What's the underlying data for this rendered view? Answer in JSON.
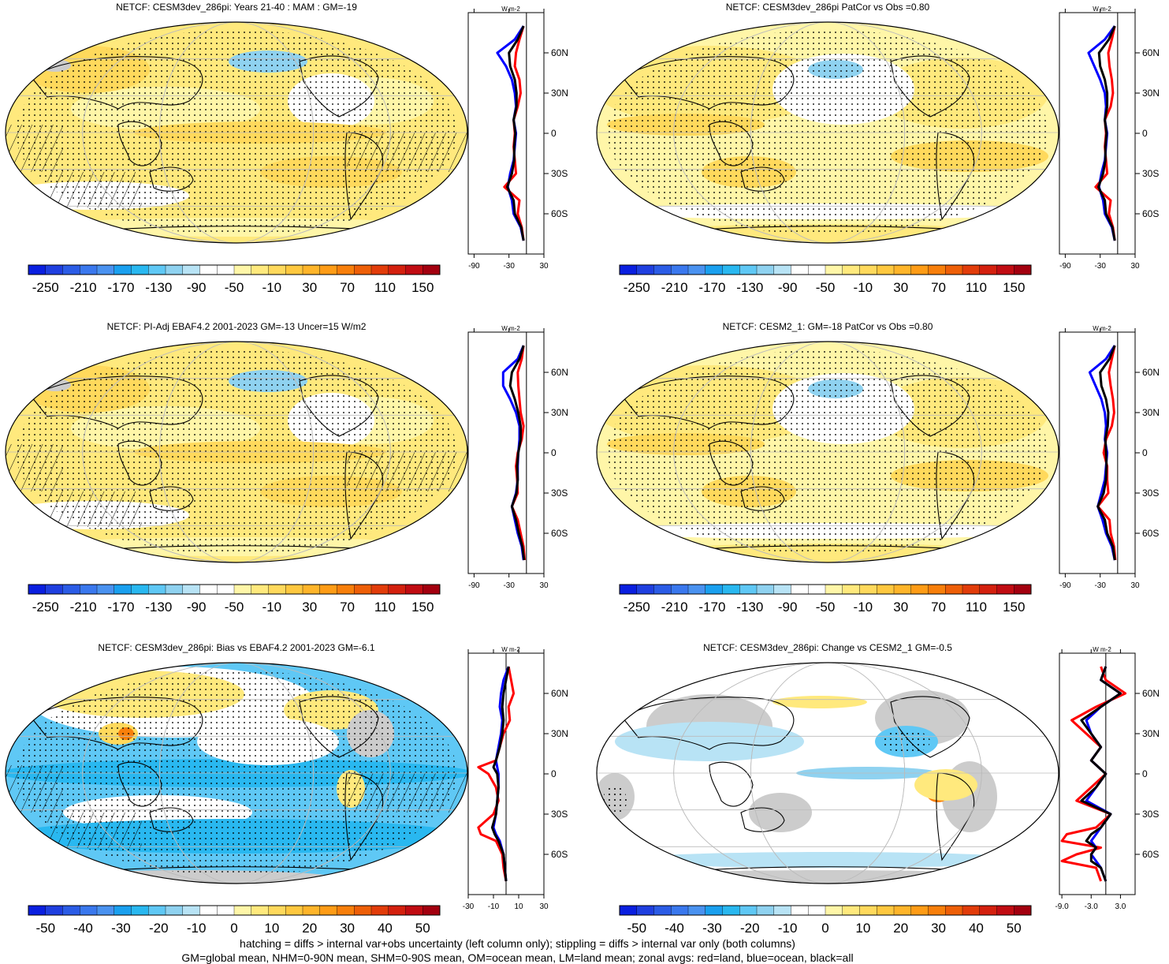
{
  "panels": [
    {
      "title": "NETCF: CESM3dev_286pi: Years 21-40 : MAM : GM=-19"
    },
    {
      "title": "NETCF: CESM3dev_286pi PatCor vs Obs =0.80"
    },
    {
      "title": "NETCF: PI-Adj EBAF4.2 2001-2023 GM=-13 Uncer=15 W/m2"
    },
    {
      "title": "NETCF: CESM2_1: GM=-18 PatCor vs Obs =0.80"
    },
    {
      "title": "NETCF: CESM3dev_286pi: Bias vs EBAF4.2 2001-2023 GM=-6.1"
    },
    {
      "title": "NETCF: CESM3dev_286pi: Change vs CESM2_1 GM=-0.5"
    }
  ],
  "footer": {
    "line1": "hatching = diffs > internal var+obs uncertainty (left column only); stippling = diffs > internal var only (both columns)",
    "line2": "GM=global mean, NHM=0-90N mean, SHM=0-90S mean, OM=ocean mean, LM=land mean; zonal avgs: red=land, blue=ocean, black=all"
  },
  "chart_data": [
    {
      "type": "heatmap",
      "title": "NETCF: CESM3dev_286pi: Years 21-40 : MAM : GM=-19",
      "colorbar_ticks": [
        "-250",
        "-210",
        "-170",
        "-130",
        "-90",
        "-50",
        "-10",
        "30",
        "70",
        "110",
        "150"
      ],
      "colors": [
        "#0a1fe0",
        "#1f3fe0",
        "#2b5ce6",
        "#3a78ee",
        "#4a92f0",
        "#1aa0ef",
        "#29b8f0",
        "#5fc8f5",
        "#8fd2f0",
        "#b8e3f5",
        "#ffffff",
        "#ffffff",
        "#fff6a8",
        "#ffe97d",
        "#ffd95c",
        "#ffc83f",
        "#ffb52a",
        "#ff9c16",
        "#f87f0b",
        "#ee5f08",
        "#e23c0a",
        "#d4200e",
        "#c10c12",
        "#a3000f"
      ],
      "zonal_avg": {
        "unit": "W m-2",
        "xlim": [
          -100,
          30
        ],
        "xticks": [
          "-90",
          "-30",
          "30"
        ],
        "lat_ticks": [
          "60N",
          "30N",
          "0",
          "30S",
          "60S"
        ],
        "series": [
          {
            "color": "#ff0000",
            "lat": [
              80,
              70,
              60,
              50,
              40,
              30,
              20,
              10,
              0,
              -10,
              -20,
              -30,
              -40,
              -50,
              -60,
              -70,
              -80
            ],
            "values": [
              -5,
              -12,
              -18,
              -20,
              -12,
              -10,
              -15,
              -22,
              -20,
              -22,
              -20,
              -18,
              -38,
              -12,
              -15,
              -8,
              -5
            ]
          },
          {
            "color": "#0000ff",
            "lat": [
              80,
              70,
              60,
              50,
              40,
              30,
              20,
              10,
              0,
              -10,
              -20,
              -30,
              -40,
              -50,
              -60,
              -70,
              -80
            ],
            "values": [
              -5,
              -20,
              -50,
              -35,
              -25,
              -20,
              -18,
              -22,
              -18,
              -20,
              -22,
              -28,
              -32,
              -25,
              -22,
              -10,
              -5
            ]
          },
          {
            "color": "#000000",
            "lat": [
              80,
              70,
              60,
              50,
              40,
              30,
              20,
              10,
              0,
              -10,
              -20,
              -30,
              -40,
              -50,
              -60,
              -70,
              -80
            ],
            "values": [
              -5,
              -15,
              -30,
              -28,
              -20,
              -17,
              -17,
              -22,
              -19,
              -21,
              -21,
              -25,
              -33,
              -22,
              -20,
              -9,
              -5
            ]
          }
        ]
      }
    },
    {
      "type": "heatmap",
      "title": "NETCF: CESM3dev_286pi PatCor vs Obs =0.80",
      "colorbar_ticks": [
        "-250",
        "-210",
        "-170",
        "-130",
        "-90",
        "-50",
        "-10",
        "30",
        "70",
        "110",
        "150"
      ],
      "zonal_avg": {
        "unit": "W m-2",
        "xlim": [
          -100,
          30
        ],
        "xticks": [
          "-90",
          "-30",
          "30"
        ],
        "lat_ticks": [
          "60N",
          "30N",
          "0",
          "30S",
          "60S"
        ],
        "series": [
          {
            "color": "#ff0000",
            "lat": [
              80,
              70,
              60,
              50,
              40,
              30,
              20,
              10,
              0,
              -10,
              -20,
              -30,
              -40,
              -50,
              -60,
              -70,
              -80
            ],
            "values": [
              -5,
              -10,
              -16,
              -14,
              -10,
              -8,
              -12,
              -22,
              -20,
              -22,
              -20,
              -18,
              -38,
              -12,
              -15,
              -8,
              -5
            ]
          },
          {
            "color": "#0000ff",
            "lat": [
              80,
              70,
              60,
              50,
              40,
              30,
              20,
              10,
              0,
              -10,
              -20,
              -30,
              -40,
              -50,
              -60,
              -70,
              -80
            ],
            "values": [
              -5,
              -22,
              -50,
              -40,
              -30,
              -22,
              -20,
              -22,
              -18,
              -20,
              -22,
              -28,
              -32,
              -25,
              -22,
              -10,
              -5
            ]
          },
          {
            "color": "#000000",
            "lat": [
              80,
              70,
              60,
              50,
              40,
              30,
              20,
              10,
              0,
              -10,
              -20,
              -30,
              -40,
              -50,
              -60,
              -70,
              -80
            ],
            "values": [
              -5,
              -15,
              -32,
              -30,
              -22,
              -18,
              -18,
              -22,
              -19,
              -21,
              -21,
              -25,
              -33,
              -22,
              -20,
              -9,
              -5
            ]
          }
        ]
      }
    },
    {
      "type": "heatmap",
      "title": "NETCF: PI-Adj EBAF4.2 2001-2023 GM=-13 Uncer=15 W/m2",
      "colorbar_ticks": [
        "-250",
        "-210",
        "-170",
        "-130",
        "-90",
        "-50",
        "-10",
        "30",
        "70",
        "110",
        "150"
      ],
      "zonal_avg": {
        "unit": "W m-2",
        "xlim": [
          -100,
          30
        ],
        "xticks": [
          "-90",
          "-30",
          "30"
        ],
        "lat_ticks": [
          "60N",
          "30N",
          "0",
          "30S",
          "60S"
        ],
        "series": [
          {
            "color": "#ff0000",
            "lat": [
              80,
              70,
              60,
              50,
              40,
              30,
              20,
              10,
              0,
              -10,
              -20,
              -30,
              -40,
              -50,
              -60,
              -70,
              -80
            ],
            "values": [
              -5,
              -8,
              -15,
              -14,
              -12,
              -10,
              -5,
              -8,
              -15,
              -18,
              -16,
              -15,
              -25,
              -15,
              -10,
              -5,
              -3
            ]
          },
          {
            "color": "#0000ff",
            "lat": [
              80,
              70,
              60,
              50,
              40,
              30,
              20,
              10,
              0,
              -10,
              -20,
              -30,
              -40,
              -50,
              -60,
              -70,
              -80
            ],
            "values": [
              -5,
              -15,
              -40,
              -40,
              -28,
              -18,
              -12,
              -12,
              -14,
              -15,
              -15,
              -18,
              -25,
              -20,
              -15,
              -8,
              -5
            ]
          },
          {
            "color": "#000000",
            "lat": [
              80,
              70,
              60,
              50,
              40,
              30,
              20,
              10,
              0,
              -10,
              -20,
              -30,
              -40,
              -50,
              -60,
              -70,
              -80
            ],
            "values": [
              -5,
              -12,
              -25,
              -28,
              -20,
              -14,
              -10,
              -10,
              -14,
              -16,
              -15,
              -17,
              -25,
              -18,
              -13,
              -7,
              -4
            ]
          }
        ]
      }
    },
    {
      "type": "heatmap",
      "title": "NETCF: CESM2_1: GM=-18 PatCor vs Obs =0.80",
      "colorbar_ticks": [
        "-250",
        "-210",
        "-170",
        "-130",
        "-90",
        "-50",
        "-10",
        "30",
        "70",
        "110",
        "150"
      ],
      "zonal_avg": {
        "unit": "W m-2",
        "xlim": [
          -100,
          30
        ],
        "xticks": [
          "-90",
          "-30",
          "30"
        ],
        "lat_ticks": [
          "60N",
          "30N",
          "0",
          "30S",
          "60S"
        ],
        "series": [
          {
            "color": "#ff0000",
            "lat": [
              80,
              70,
              60,
              50,
              40,
              30,
              20,
              10,
              0,
              -10,
              -20,
              -30,
              -40,
              -50,
              -60,
              -70,
              -80
            ],
            "values": [
              -5,
              -10,
              -15,
              -12,
              -8,
              -6,
              -10,
              -20,
              -24,
              -18,
              -18,
              -16,
              -34,
              -14,
              -12,
              -6,
              -4
            ]
          },
          {
            "color": "#0000ff",
            "lat": [
              80,
              70,
              60,
              50,
              40,
              30,
              20,
              10,
              0,
              -10,
              -20,
              -30,
              -40,
              -50,
              -60,
              -70,
              -80
            ],
            "values": [
              -5,
              -20,
              -48,
              -38,
              -28,
              -22,
              -20,
              -22,
              -18,
              -20,
              -22,
              -28,
              -34,
              -26,
              -20,
              -10,
              -5
            ]
          },
          {
            "color": "#000000",
            "lat": [
              80,
              70,
              60,
              50,
              40,
              30,
              20,
              10,
              0,
              -10,
              -20,
              -30,
              -40,
              -50,
              -60,
              -70,
              -80
            ],
            "values": [
              -5,
              -14,
              -30,
              -28,
              -20,
              -16,
              -17,
              -21,
              -20,
              -19,
              -20,
              -24,
              -34,
              -22,
              -18,
              -8,
              -5
            ]
          }
        ]
      }
    },
    {
      "type": "heatmap",
      "title": "NETCF: CESM3dev_286pi: Bias vs EBAF4.2 2001-2023 GM=-6.1",
      "colorbar_ticks": [
        "-50",
        "-40",
        "-30",
        "-20",
        "-10",
        "0",
        "10",
        "20",
        "30",
        "40",
        "50"
      ],
      "zonal_avg": {
        "unit": "W m-2",
        "xlim": [
          -30,
          30
        ],
        "xticks": [
          "-30",
          "-10",
          "10",
          "30"
        ],
        "lat_ticks": [
          "60N",
          "30N",
          "0",
          "30S",
          "60S"
        ],
        "series": [
          {
            "color": "#ff0000",
            "lat": [
              80,
              70,
              60,
              50,
              40,
              30,
              20,
              10,
              5,
              0,
              -10,
              -20,
              -30,
              -40,
              -45,
              -50,
              -60,
              -70,
              -80
            ],
            "values": [
              2,
              4,
              6,
              2,
              3,
              -2,
              -5,
              -8,
              -22,
              -14,
              -8,
              -6,
              -10,
              -22,
              -20,
              -8,
              -3,
              -2,
              0
            ]
          },
          {
            "color": "#0000ff",
            "lat": [
              80,
              70,
              60,
              50,
              40,
              30,
              20,
              10,
              5,
              0,
              -10,
              -20,
              -30,
              -40,
              -45,
              -50,
              -60,
              -70,
              -80
            ],
            "values": [
              2,
              -2,
              -4,
              -5,
              -3,
              -4,
              -6,
              -8,
              -7,
              -6,
              -6,
              -7,
              -8,
              -10,
              -8,
              -5,
              -2,
              -1,
              0
            ]
          },
          {
            "color": "#000000",
            "lat": [
              80,
              70,
              60,
              50,
              40,
              30,
              20,
              10,
              5,
              0,
              -10,
              -20,
              -30,
              -40,
              -45,
              -50,
              -60,
              -70,
              -80
            ],
            "values": [
              2,
              0,
              -2,
              -3,
              -2,
              -3,
              -5,
              -8,
              -10,
              -7,
              -6,
              -7,
              -8,
              -11,
              -9,
              -6,
              -2,
              -1,
              0
            ]
          }
        ]
      }
    },
    {
      "type": "heatmap",
      "title": "NETCF: CESM3dev_286pi: Change vs CESM2_1 GM=-0.5",
      "colorbar_ticks": [
        "-50",
        "-40",
        "-30",
        "-20",
        "-10",
        "0",
        "10",
        "20",
        "30",
        "40",
        "50"
      ],
      "zonal_avg": {
        "unit": "W m-2",
        "xlim": [
          -9.5,
          6
        ],
        "xticks": [
          "-9.0",
          "-3.0",
          "3.0"
        ],
        "lat_ticks": [
          "60N",
          "30N",
          "0",
          "30S",
          "60S"
        ],
        "series": [
          {
            "color": "#ff0000",
            "lat": [
              80,
              70,
              60,
              50,
              40,
              30,
              20,
              10,
              0,
              -10,
              -20,
              -30,
              -40,
              -45,
              -50,
              -55,
              -60,
              -65,
              -70,
              -80
            ],
            "values": [
              -1,
              0,
              4,
              -2,
              -7,
              -4,
              -1,
              -3,
              0,
              -3,
              -6,
              1,
              -2,
              -8,
              -9,
              -1,
              -6,
              -9,
              -2,
              -1
            ]
          },
          {
            "color": "#0000ff",
            "lat": [
              80,
              70,
              60,
              50,
              40,
              30,
              20,
              10,
              0,
              -10,
              -20,
              -30,
              -40,
              -45,
              -50,
              -55,
              -60,
              -65,
              -70,
              -80
            ],
            "values": [
              0,
              -1,
              3,
              -1,
              -4,
              -3,
              -1,
              -3,
              0,
              -2,
              -4,
              1,
              -1,
              -2,
              -3,
              -2,
              -3,
              -2,
              -1,
              0
            ]
          },
          {
            "color": "#000000",
            "lat": [
              80,
              70,
              60,
              50,
              40,
              30,
              20,
              10,
              0,
              -10,
              -20,
              -30,
              -40,
              -45,
              -50,
              -55,
              -60,
              -65,
              -70,
              -80
            ],
            "values": [
              0,
              -1,
              3,
              -1,
              -5,
              -3,
              -1,
              -3,
              0,
              -2,
              -5,
              1,
              -1,
              -3,
              -4,
              -2,
              -3,
              -3,
              -1,
              0
            ]
          }
        ]
      }
    }
  ]
}
